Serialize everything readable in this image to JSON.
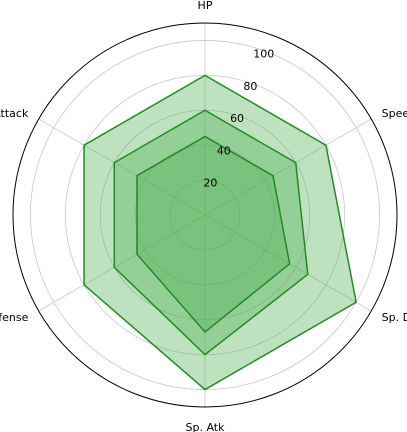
{
  "chart_data": {
    "type": "radar",
    "categories": [
      "HP",
      "Speed",
      "Sp. Def",
      "Sp. Atk",
      "Defense",
      "Attack"
    ],
    "radial_ticks": [
      20,
      40,
      60,
      80,
      100
    ],
    "rlim": [
      0,
      110
    ],
    "grid": true,
    "series": [
      {
        "values": [
          80,
          80,
          100,
          100,
          80,
          80
        ]
      },
      {
        "values": [
          60,
          60,
          68,
          80,
          60,
          60
        ]
      },
      {
        "values": [
          45,
          45,
          56,
          67,
          45,
          45
        ]
      }
    ],
    "fill_color": "#4CAF50",
    "line_color": "#228B22"
  }
}
